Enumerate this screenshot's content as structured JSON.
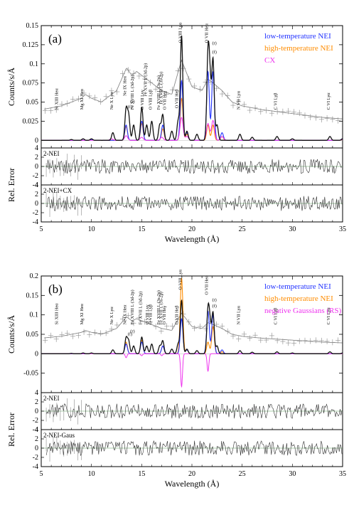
{
  "colors": {
    "data": "#8a8a8a",
    "model_total": "#111111",
    "low_nei": "#2233ff",
    "high_nei": "#ff8c00",
    "cx": "#ee33ee",
    "frame": "#000000"
  },
  "chart_data": [
    {
      "type": "line",
      "panel_label": "(a)",
      "ylabel": "Counts/s/Å",
      "xlim": [
        5,
        35
      ],
      "ylim": [
        -0.01,
        0.15
      ],
      "yticks": [
        "0",
        "0.025",
        "0.05",
        "0.075",
        "0.1",
        "0.125",
        "0.15"
      ],
      "legend": [
        {
          "name": "low-temperature NEI",
          "color": "#2233ff"
        },
        {
          "name": "high-temperature NEI",
          "color": "#ff8c00"
        },
        {
          "name": "CX",
          "color": "#ee33ee"
        }
      ],
      "data_envelope": {
        "x": [
          5,
          7,
          8,
          9,
          9.4,
          10,
          11,
          12,
          12.5,
          13,
          13.5,
          14,
          14.5,
          15,
          16,
          17,
          18,
          18.97,
          20,
          21,
          21.6,
          22.1,
          23,
          24,
          25,
          27,
          30,
          33,
          35
        ],
        "y": [
          0.04,
          0.045,
          0.05,
          0.055,
          0.06,
          0.055,
          0.05,
          0.06,
          0.065,
          0.08,
          0.095,
          0.085,
          0.09,
          0.085,
          0.075,
          0.065,
          0.06,
          0.105,
          0.07,
          0.065,
          0.08,
          0.075,
          0.065,
          0.05,
          0.045,
          0.04,
          0.035,
          0.03,
          0.028
        ]
      },
      "total_model": {
        "x": [
          5,
          8,
          9.17,
          10,
          12.13,
          13.45,
          13.7,
          14.2,
          15.01,
          15.5,
          16.0,
          16.8,
          17.1,
          18.0,
          18.63,
          18.97,
          19.5,
          20.5,
          21.6,
          21.8,
          22.1,
          22.5,
          24.78,
          26,
          28.47,
          30,
          33.74,
          35
        ],
        "y": [
          0,
          0.001,
          0.002,
          0.002,
          0.01,
          0.04,
          0.032,
          0.02,
          0.043,
          0.02,
          0.025,
          0.02,
          0.033,
          0.012,
          0.025,
          0.137,
          0.012,
          0.008,
          0.107,
          0.07,
          0.105,
          0.02,
          0.008,
          0.004,
          0.005,
          0.002,
          0.005,
          0.002
        ]
      },
      "low_temperature_nei": {
        "x": [
          5,
          10,
          13.45,
          15.01,
          17.1,
          18.97,
          19.5,
          21.6,
          22.1,
          23,
          35
        ],
        "y": [
          0,
          0.001,
          0.02,
          0.025,
          0.02,
          0.078,
          0.01,
          0.09,
          0.09,
          0.01,
          0.002
        ]
      },
      "high_temperature_nei": {
        "x": [
          5,
          10,
          13.45,
          15.01,
          17.1,
          18.97,
          19.5,
          21.6,
          22.1,
          23,
          35
        ],
        "y": [
          0,
          0.001,
          0.018,
          0.022,
          0.015,
          0.055,
          0.008,
          0.02,
          0.02,
          0.005,
          0.001
        ]
      },
      "cx_component": {
        "x": [
          5,
          12,
          13.45,
          15,
          17,
          18.97,
          19.5,
          21.6,
          22.1,
          23,
          35
        ],
        "y": [
          0,
          0.002,
          0.006,
          0.004,
          0.004,
          0.03,
          0.005,
          0.022,
          0.026,
          0.005,
          0.001
        ]
      },
      "line_labels": [
        {
          "text": "Si XIII Heα",
          "x": 6.65
        },
        {
          "text": "Mg XI Heα",
          "x": 9.17
        },
        {
          "text": "Ne X Lyα",
          "x": 12.13
        },
        {
          "text": "Ne IX Heα",
          "x": 13.45
        },
        {
          "text": "(r)",
          "x": 13.45
        },
        {
          "text": "(f)",
          "x": 13.7
        },
        {
          "text": "Fe XVIII L (3d-2p)",
          "x": 14.2
        },
        {
          "text": "O VIII Lyβ",
          "x": 16.0
        },
        {
          "text": "Fe XVIII L (3s-2p)",
          "x": 16.8
        },
        {
          "text": "O VIII Lyγ",
          "x": 15.18
        },
        {
          "text": "Fe XVII L (3d-2p)",
          "x": 15.01
        },
        {
          "text": "Fe XVII L (3s-2p)",
          "x": 17.05
        },
        {
          "text": "O VII Heγ",
          "x": 17.4
        },
        {
          "text": "O VII Heβ",
          "x": 18.63
        },
        {
          "text": "O VIII Lyα",
          "x": 18.97
        },
        {
          "text": "O VII Heα",
          "x": 21.6
        },
        {
          "text": "(r)",
          "x": 21.6
        },
        {
          "text": "(f)",
          "x": 22.1
        },
        {
          "text": "N VII Lyα",
          "x": 24.78
        },
        {
          "text": "C VI Lyβ",
          "x": 28.47
        },
        {
          "text": "C VI Lyα",
          "x": 33.74
        }
      ],
      "residuals": [
        {
          "label": "2-NEI",
          "ylim": [
            -4,
            4
          ],
          "yticks": [
            "-4",
            "-2",
            "0",
            "2",
            "4"
          ]
        },
        {
          "label": "2-NEI+CX",
          "ylim": [
            -4,
            4
          ],
          "yticks": [
            "-4",
            "-2",
            "0",
            "2",
            "4"
          ]
        }
      ],
      "residual_ylabel": "Rel. Error",
      "xlabel": "Wavelength (Å)",
      "xticks": [
        "5",
        "10",
        "15",
        "20",
        "25",
        "30",
        "35"
      ]
    },
    {
      "type": "line",
      "panel_label": "(b)",
      "ylabel": "Counts/s/Å",
      "xlim": [
        5,
        35
      ],
      "ylim": [
        -0.1,
        0.2
      ],
      "yticks": [
        "-0.05",
        "0",
        "0.05",
        "0.1",
        "0.15",
        "0.2"
      ],
      "legend": [
        {
          "name": "low-temperature NEI",
          "color": "#2233ff"
        },
        {
          "name": "high-temperature NEI",
          "color": "#ff8c00"
        },
        {
          "name": "negative Gaussians (RS)",
          "color": "#ee33ee"
        }
      ],
      "data_envelope": {
        "x": [
          5,
          7,
          8,
          9,
          9.4,
          10,
          11,
          12,
          12.5,
          13,
          13.5,
          14,
          14.5,
          15,
          16,
          17,
          18,
          18.97,
          20,
          21,
          21.6,
          22.1,
          23,
          24,
          25,
          27,
          30,
          33,
          35
        ],
        "y": [
          0.04,
          0.045,
          0.05,
          0.055,
          0.06,
          0.055,
          0.05,
          0.06,
          0.065,
          0.08,
          0.095,
          0.085,
          0.09,
          0.085,
          0.075,
          0.065,
          0.06,
          0.105,
          0.07,
          0.065,
          0.08,
          0.075,
          0.065,
          0.05,
          0.045,
          0.04,
          0.035,
          0.03,
          0.028
        ]
      },
      "total_model": {
        "x": [
          5,
          8,
          9.17,
          10,
          12.13,
          13.45,
          13.7,
          14.2,
          15.01,
          15.5,
          16.0,
          16.8,
          17.1,
          18.0,
          18.63,
          18.97,
          19.5,
          20.5,
          21.6,
          21.8,
          22.1,
          22.5,
          24.78,
          26,
          28.47,
          30,
          33.74,
          35
        ],
        "y": [
          0,
          0.001,
          0.002,
          0.002,
          0.01,
          0.04,
          0.032,
          0.02,
          0.043,
          0.02,
          0.025,
          0.02,
          0.033,
          0.012,
          0.025,
          0.137,
          0.012,
          0.008,
          0.107,
          0.07,
          0.105,
          0.02,
          0.008,
          0.004,
          0.005,
          0.002,
          0.005,
          0.002
        ]
      },
      "low_temperature_nei": {
        "x": [
          5,
          10,
          13.45,
          15.01,
          17.1,
          18.97,
          19.5,
          21.6,
          22.1,
          23,
          35
        ],
        "y": [
          0,
          0.001,
          0.025,
          0.03,
          0.02,
          0.09,
          0.01,
          0.11,
          0.1,
          0.01,
          0.002
        ]
      },
      "high_temperature_nei": {
        "x": [
          5,
          10,
          13.45,
          15.01,
          17.1,
          18.97,
          19.5,
          21.6,
          22.1,
          23,
          35
        ],
        "y": [
          0,
          0.001,
          0.03,
          0.035,
          0.02,
          0.195,
          0.01,
          0.03,
          0.07,
          0.005,
          0.001
        ]
      },
      "negative_gaussians_rs": {
        "x": [
          5,
          13,
          13.45,
          14,
          15,
          17,
          18.6,
          18.97,
          19.4,
          21.2,
          21.6,
          22.0,
          23,
          35
        ],
        "y": [
          0,
          0,
          -0.01,
          0,
          -0.005,
          -0.005,
          0,
          -0.085,
          0,
          0,
          -0.045,
          0,
          0,
          0
        ]
      },
      "line_labels": [
        {
          "text": "Si XIII Heα",
          "x": 6.65
        },
        {
          "text": "Mg XI Heα",
          "x": 9.17
        },
        {
          "text": "Ne X Lyα",
          "x": 12.13
        },
        {
          "text": "Ne IX Heα",
          "x": 13.45
        },
        {
          "text": "(r)",
          "x": 13.45
        },
        {
          "text": "(f)",
          "x": 13.7
        },
        {
          "text": "Fe XVII L (3d-2p)",
          "x": 15.01
        },
        {
          "text": "Fe XVIII L (3d-2p)",
          "x": 14.2
        },
        {
          "text": "O VIII Lyβ",
          "x": 16.0
        },
        {
          "text": "Fe XVIII L (3s-2p)",
          "x": 16.8
        },
        {
          "text": "Fe XVII L (3s-2p)",
          "x": 17.05
        },
        {
          "text": "O VIII Lyγ",
          "x": 15.18
        },
        {
          "text": "O VII Heγ",
          "x": 17.4
        },
        {
          "text": "O VII Heβ",
          "x": 18.63
        },
        {
          "text": "O VIII Lyα",
          "x": 18.97
        },
        {
          "text": "O VII Heα",
          "x": 21.6
        },
        {
          "text": "(r)",
          "x": 21.6
        },
        {
          "text": "(f)",
          "x": 22.1
        },
        {
          "text": "N VII Lyα",
          "x": 24.78
        },
        {
          "text": "C VI Lyβ",
          "x": 28.47
        },
        {
          "text": "C VI Lyα",
          "x": 33.74
        }
      ],
      "residuals": [
        {
          "label": "2-NEI",
          "ylim": [
            -4,
            4
          ],
          "yticks": [
            "-4",
            "-2",
            "0",
            "2",
            "4"
          ]
        },
        {
          "label": "2-NEI-Gaus",
          "ylim": [
            -4,
            4
          ],
          "yticks": [
            "-4",
            "-2",
            "0",
            "2",
            "4"
          ]
        }
      ],
      "residual_ylabel": "Rel. Error",
      "xlabel": "Wavelength (Å)",
      "xticks": [
        "5",
        "10",
        "15",
        "20",
        "25",
        "30",
        "35"
      ]
    }
  ]
}
